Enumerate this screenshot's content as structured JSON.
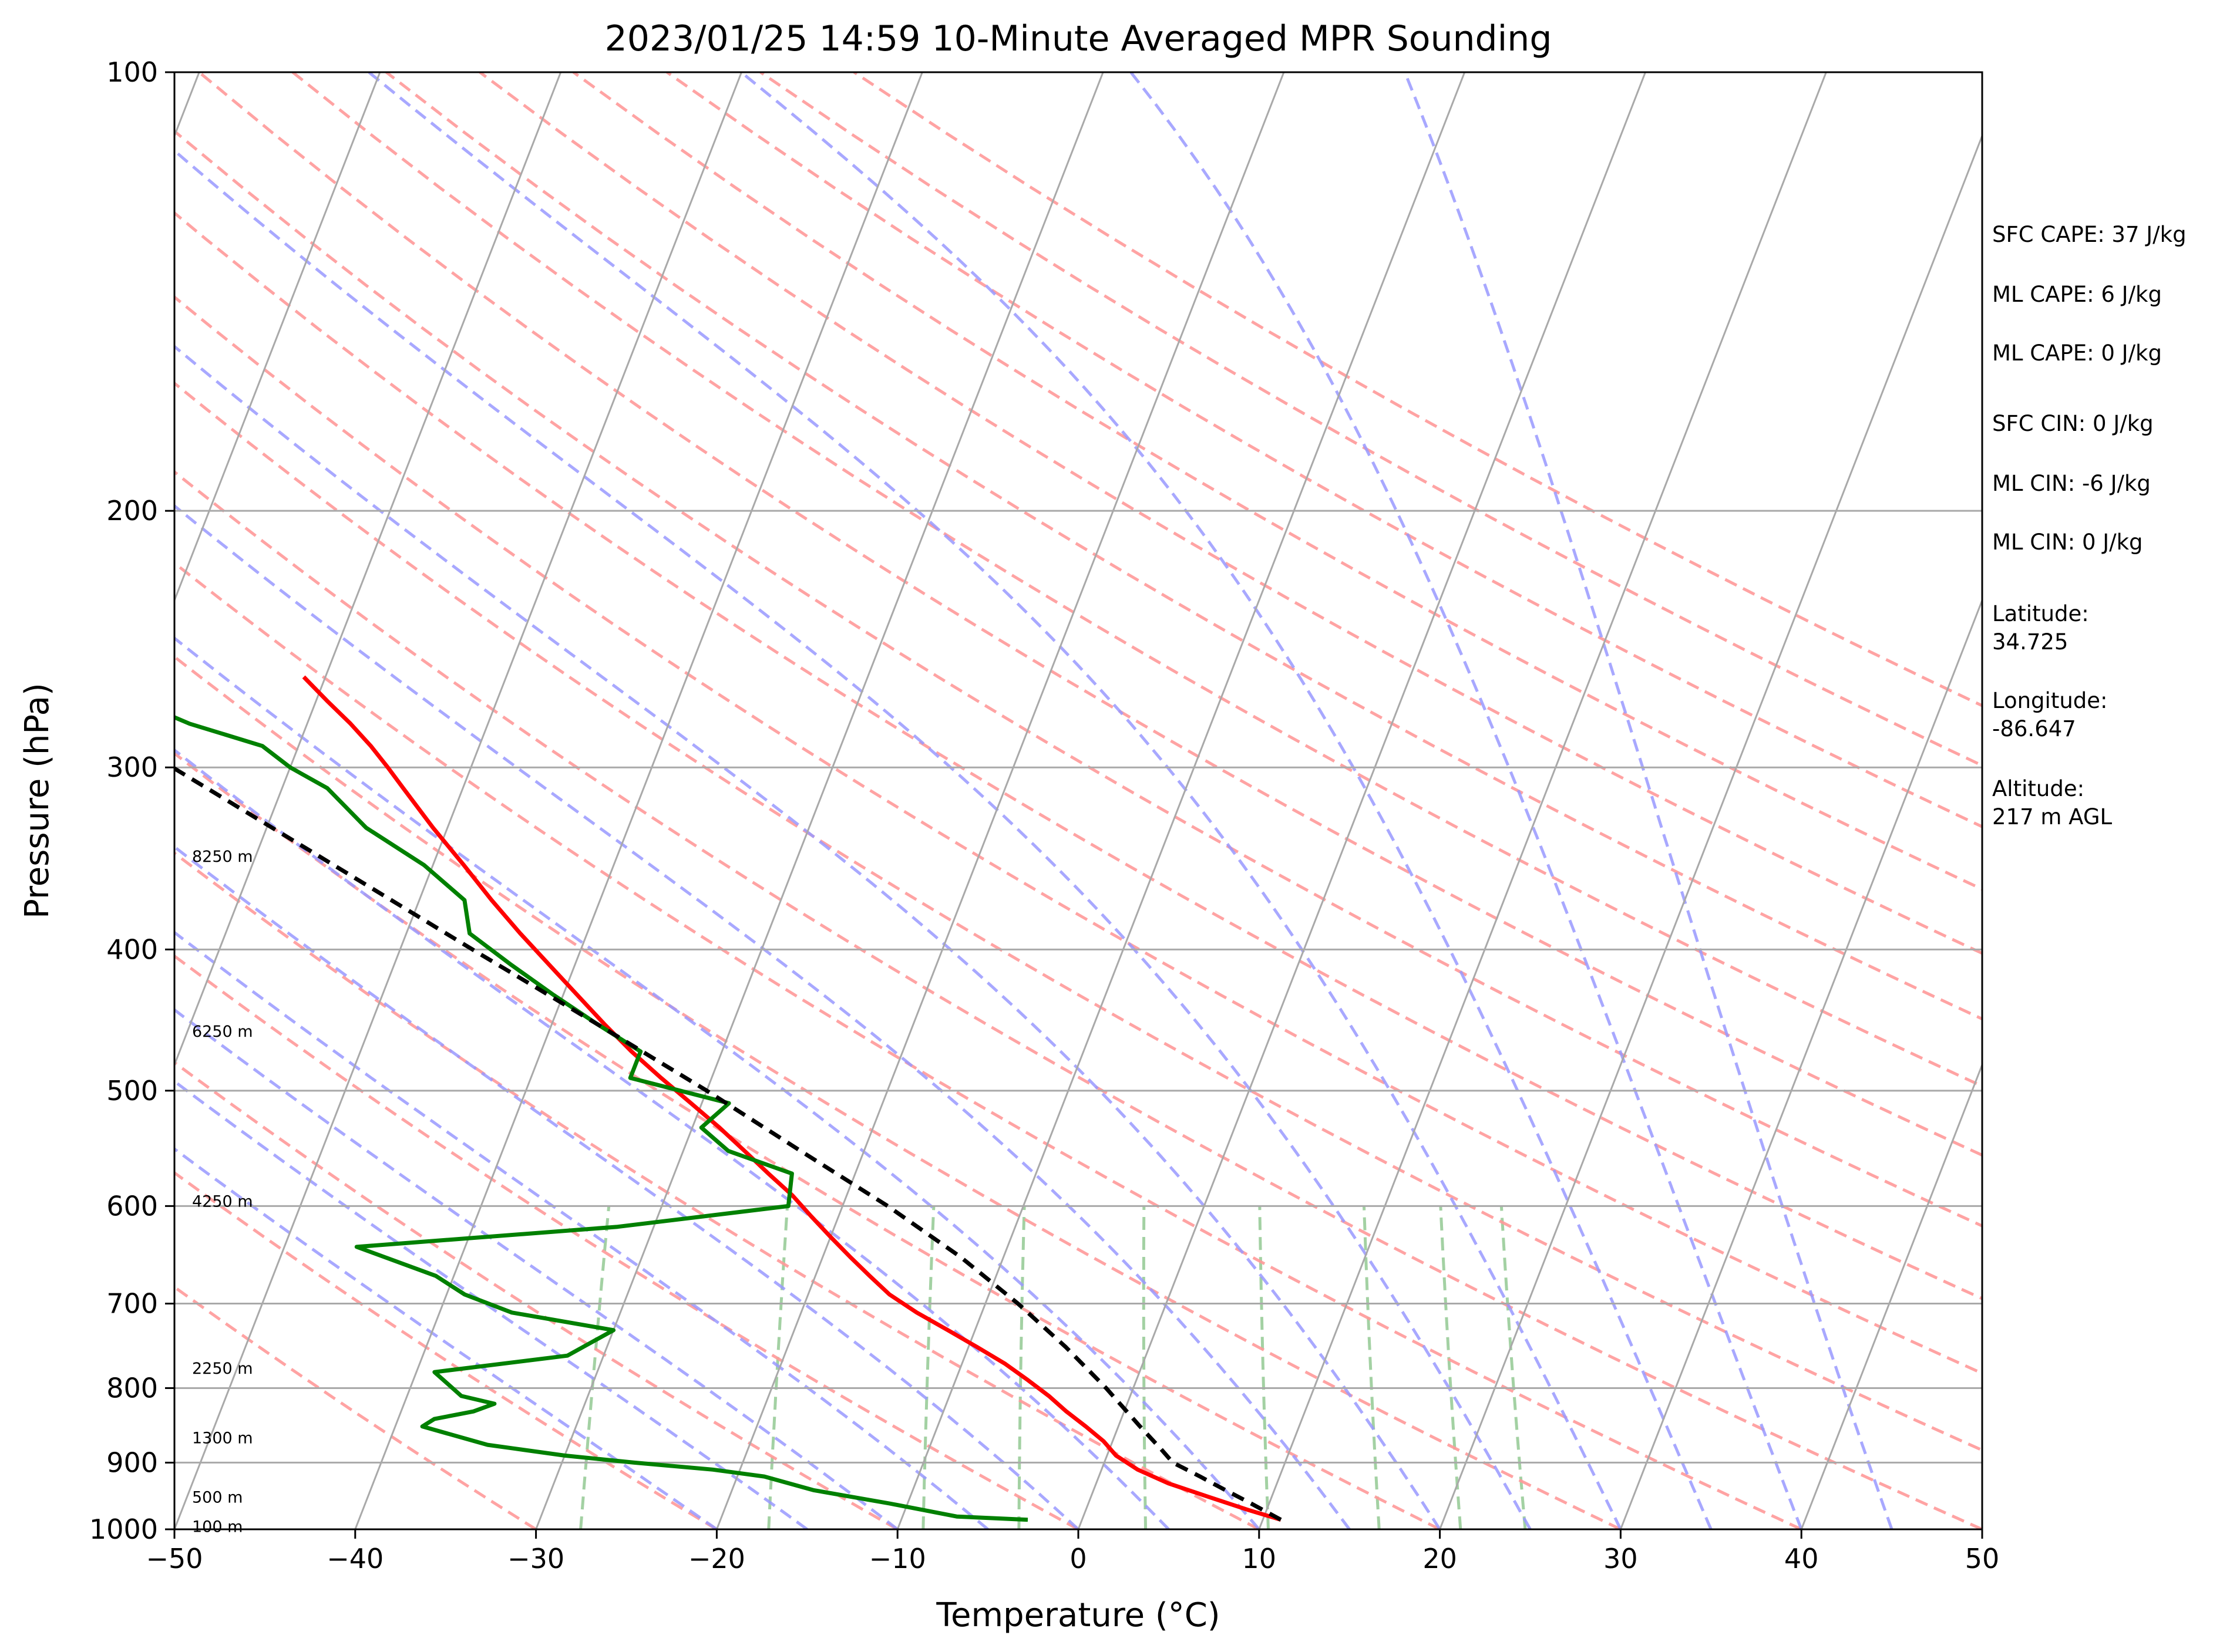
{
  "chart_data": {
    "type": "line",
    "title": "2023/01/25 14:59 10-Minute Averaged MPR Sounding",
    "xlabel": "Temperature (°C)",
    "ylabel": "Pressure (hPa)",
    "xlim": [
      -50,
      50
    ],
    "ylim": [
      1000,
      100
    ],
    "y_scale": "log",
    "skew_t": true,
    "x_ticks": [
      "−50",
      "−40",
      "−30",
      "−20",
      "−10",
      "0",
      "10",
      "20",
      "30",
      "40",
      "50"
    ],
    "y_ticks": [
      "1000",
      "900",
      "800",
      "700",
      "600",
      "500",
      "400",
      "300",
      "200",
      "100"
    ],
    "grid": true,
    "series": [
      {
        "color": "#ff0000",
        "p": [
          985,
          970,
          950,
          930,
          910,
          890,
          870,
          850,
          830,
          810,
          790,
          770,
          750,
          730,
          710,
          690,
          670,
          650,
          630,
          610,
          590,
          570,
          550,
          530,
          510,
          490,
          470,
          450,
          430,
          410,
          390,
          370,
          350,
          330,
          310,
          300,
          290,
          280,
          270,
          260
        ],
        "t": [
          11,
          9,
          6.5,
          4,
          2,
          0.5,
          -0.5,
          -1.8,
          -3.2,
          -4.5,
          -6,
          -7.6,
          -9.5,
          -11.5,
          -13.6,
          -15.5,
          -17,
          -18.5,
          -20,
          -21.5,
          -23,
          -24.8,
          -26.6,
          -28.5,
          -30.6,
          -32.8,
          -35,
          -37.1,
          -39.2,
          -41.4,
          -43.7,
          -46,
          -48.3,
          -50.8,
          -53.3,
          -54.6,
          -56,
          -57.6,
          -59.4,
          -61.2
        ]
      },
      {
        "color": "#008000",
        "p": [
          985,
          980,
          960,
          940,
          920,
          910,
          900,
          890,
          880,
          875,
          850,
          840,
          830,
          820,
          810,
          780,
          760,
          730,
          710,
          690,
          670,
          640,
          620,
          600,
          570,
          550,
          530,
          510,
          490,
          470,
          450,
          430,
          410,
          390,
          370,
          350,
          330,
          310,
          300,
          290,
          280,
          270,
          260
        ],
        "t": [
          -3,
          -7,
          -11,
          -15.5,
          -18.5,
          -21.5,
          -26,
          -30,
          -33,
          -34.5,
          -38.5,
          -38,
          -36,
          -35,
          -37,
          -39,
          -32,
          -30,
          -36,
          -39,
          -41,
          -46,
          -32,
          -23,
          -23.5,
          -27.5,
          -29.5,
          -28.5,
          -34.5,
          -34.5,
          -37.5,
          -40.5,
          -43.5,
          -46.5,
          -47.5,
          -50.5,
          -54.5,
          -57.5,
          -60,
          -62,
          -66.5,
          -70,
          -70.5
        ]
      },
      {
        "color": "#000000",
        "dashed": true,
        "p": [
          985,
          960,
          940,
          920,
          900,
          880,
          850,
          800,
          750,
          700,
          650,
          600,
          550,
          500,
          450,
          400,
          350,
          300,
          265
        ],
        "t": [
          11,
          9,
          7.3,
          5.6,
          3.8,
          2.8,
          1.2,
          -1.5,
          -4.6,
          -8.2,
          -12.4,
          -17.5,
          -23.5,
          -30,
          -37.5,
          -46,
          -55.5,
          -66.5,
          -75
        ]
      }
    ],
    "height_labels": [
      {
        "label": "100 m",
        "p": 995
      },
      {
        "label": "500 m",
        "p": 950
      },
      {
        "label": "1300 m",
        "p": 865
      },
      {
        "label": "2250 m",
        "p": 775
      },
      {
        "label": "4250 m",
        "p": 595
      },
      {
        "label": "6250 m",
        "p": 455
      },
      {
        "label": "8250 m",
        "p": 345
      }
    ],
    "reference_lines": {
      "isotherm_color": "#a9a9a9",
      "isobar_color": "#a9a9a9",
      "dry_adiabat_color": "#ff9999",
      "moist_adiabat_color": "#9999ff",
      "mixing_ratio_color": "#99cc99"
    },
    "annotations": [
      "SFC CAPE: 37 J/kg",
      "ML CAPE: 6 J/kg",
      "ML CAPE: 0 J/kg",
      "SFC CIN: 0 J/kg",
      "ML CIN: -6 J/kg",
      "ML CIN: 0 J/kg",
      "Latitude:",
      "34.725",
      "Longitude:",
      "-86.647",
      "Altitude:",
      "217 m AGL"
    ]
  }
}
